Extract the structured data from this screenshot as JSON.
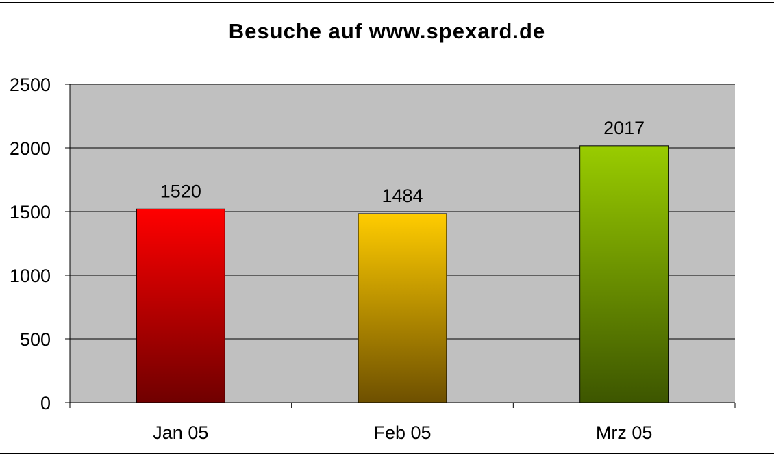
{
  "chart_data": {
    "type": "bar",
    "title": "Besuche auf www.spexard.de",
    "categories": [
      "Jan 05",
      "Feb 05",
      "Mrz 05"
    ],
    "values": [
      1520,
      1484,
      2017
    ],
    "data_labels": [
      "1520",
      "1484",
      "2017"
    ],
    "ylim": [
      0,
      2500
    ],
    "yticks": [
      0,
      500,
      1000,
      1500,
      2000,
      2500
    ],
    "grid": true,
    "legend": "none",
    "plot_background": "#c0c0c0",
    "bar_gradients": [
      {
        "top": "#ff0000",
        "bottom": "#700000"
      },
      {
        "top": "#ffcc00",
        "bottom": "#6e5000"
      },
      {
        "top": "#99cc00",
        "bottom": "#3d5600"
      }
    ]
  }
}
